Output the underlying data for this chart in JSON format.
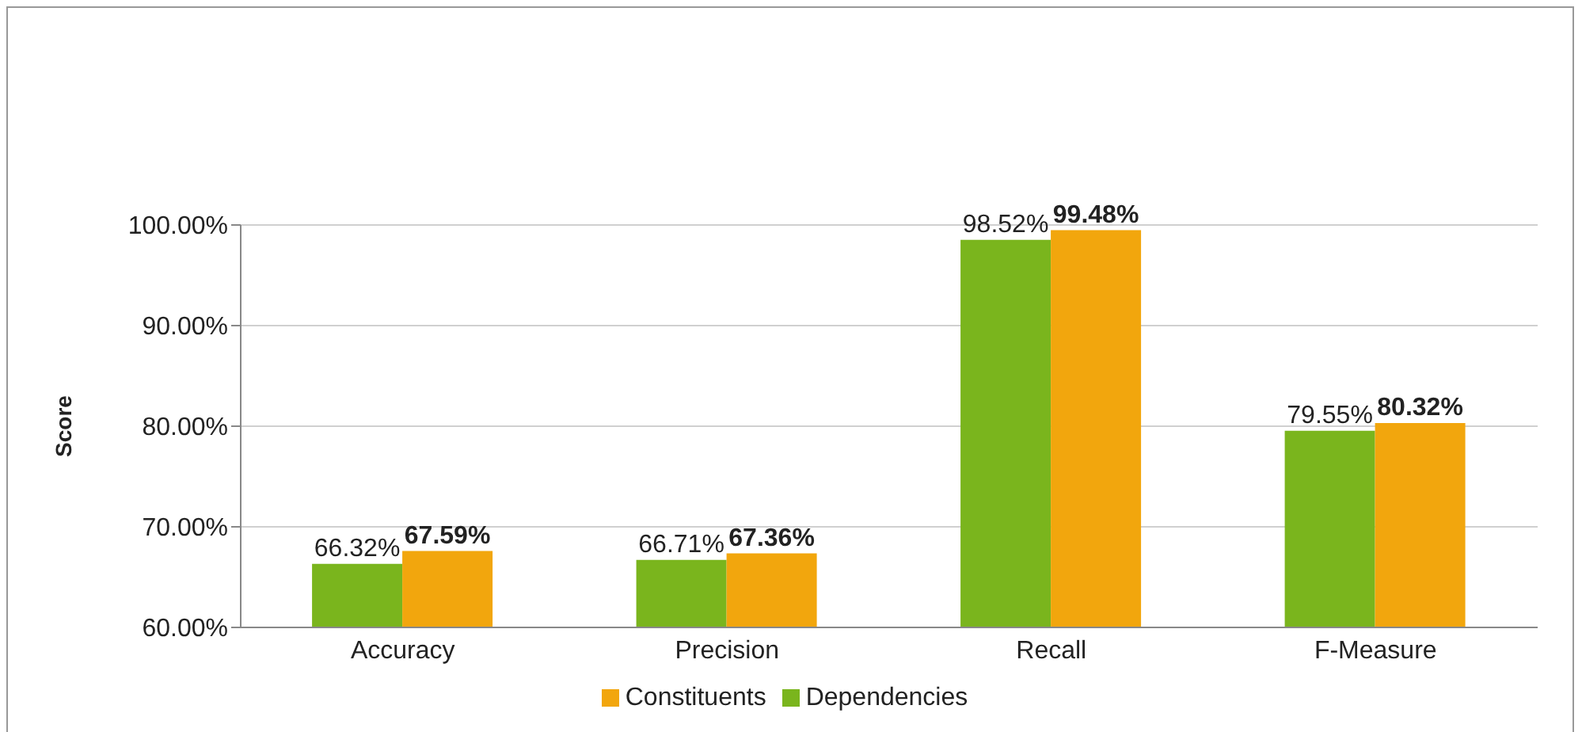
{
  "chart_data": {
    "type": "bar",
    "ylabel": "Score",
    "categories": [
      "Accuracy",
      "Precision",
      "Recall",
      "F-Measure"
    ],
    "series": [
      {
        "name": "Dependencies",
        "color": "#7ab51d",
        "values": [
          66.32,
          66.71,
          98.52,
          79.55
        ],
        "value_labels": [
          "66.32%",
          "66.71%",
          "98.52%",
          "79.55%"
        ]
      },
      {
        "name": "Constituents",
        "color": "#f2a60d",
        "values": [
          67.59,
          67.36,
          99.48,
          80.32
        ],
        "value_labels": [
          "67.59%",
          "67.36%",
          "99.48%",
          "80.32%"
        ]
      }
    ],
    "ylim": [
      60,
      100
    ],
    "yticks": [
      {
        "value": 60,
        "label": "60.00%"
      },
      {
        "value": 70,
        "label": "70.00%"
      },
      {
        "value": 80,
        "label": "80.00%"
      },
      {
        "value": 90,
        "label": "90.00%"
      },
      {
        "value": 100,
        "label": "100.00%"
      }
    ],
    "grid": "y",
    "legend": "bottom"
  }
}
